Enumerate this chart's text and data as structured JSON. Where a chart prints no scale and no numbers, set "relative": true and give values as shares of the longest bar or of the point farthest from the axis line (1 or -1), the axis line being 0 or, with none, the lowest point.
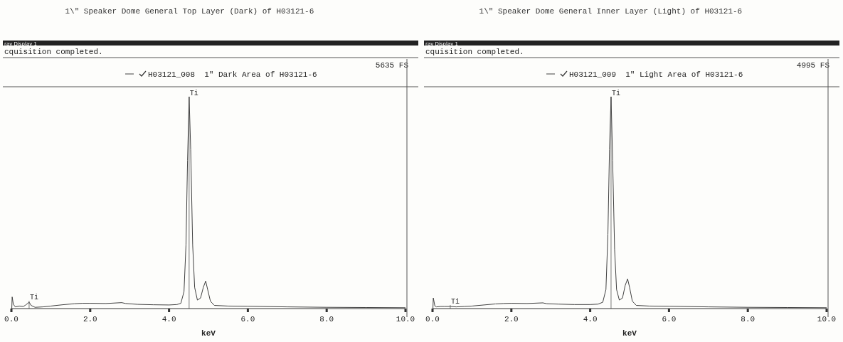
{
  "chart_data": [
    {
      "type": "line",
      "title": "1\\\" Speaker Dome General Top Layer (Dark) of H03121-6",
      "xlabel": "keV",
      "relative": true,
      "legend": "top",
      "grid": false,
      "marker": "none",
      "line_style": "solid",
      "xlim": [
        0,
        10
      ],
      "xticks": [
        {
          "value": 0,
          "label": "0.0"
        },
        {
          "value": 2,
          "label": "2.0"
        },
        {
          "value": 4,
          "label": "4.0"
        },
        {
          "value": 6,
          "label": "6.0"
        },
        {
          "value": 8,
          "label": "8.0"
        },
        {
          "value": 10,
          "label": "10.0"
        }
      ],
      "annotations": [
        "ray Display 1",
        "cquisition completed.",
        "5635 FS",
        {
          "text": "Ti",
          "x": 0.45,
          "y": 0.03
        }
      ],
      "ref_lines": [
        {
          "axis": "x",
          "value": 4.51,
          "label": "Ti",
          "color": "#555555"
        }
      ],
      "series": [
        {
          "name": "H03121_008  1\" Dark Area of H03121-6",
          "color": "#404040",
          "x": [
            0.01,
            0.02,
            0.05,
            0.1,
            0.2,
            0.3,
            0.35,
            0.45,
            0.5,
            0.6,
            0.8,
            1.0,
            1.3,
            1.6,
            1.8,
            2.0,
            2.4,
            2.8,
            2.9,
            3.2,
            3.6,
            4.0,
            4.2,
            4.3,
            4.38,
            4.43,
            4.47,
            4.51,
            4.55,
            4.6,
            4.65,
            4.72,
            4.8,
            4.87,
            4.93,
            4.98,
            5.05,
            5.15,
            5.5,
            6.0,
            7.0,
            8.0,
            9.0,
            10.0
          ],
          "values": [
            0.0,
            0.055,
            0.02,
            0.008,
            0.012,
            0.01,
            0.015,
            0.03,
            0.015,
            0.006,
            0.008,
            0.012,
            0.018,
            0.023,
            0.025,
            0.025,
            0.024,
            0.028,
            0.024,
            0.02,
            0.018,
            0.017,
            0.019,
            0.025,
            0.08,
            0.3,
            0.7,
            1,
            0.75,
            0.3,
            0.1,
            0.04,
            0.05,
            0.1,
            0.13,
            0.09,
            0.035,
            0.015,
            0.012,
            0.011,
            0.008,
            0.006,
            0.005,
            0.004
          ]
        }
      ]
    },
    {
      "type": "line",
      "title": "1\\\" Speaker Dome General Inner Layer (Light) of H03121-6",
      "xlabel": "keV",
      "relative": true,
      "legend": "top",
      "grid": false,
      "marker": "none",
      "line_style": "solid",
      "xlim": [
        0,
        10
      ],
      "xticks": [
        {
          "value": 0,
          "label": "0.0"
        },
        {
          "value": 2,
          "label": "2.0"
        },
        {
          "value": 4,
          "label": "4.0"
        },
        {
          "value": 6,
          "label": "6.0"
        },
        {
          "value": 8,
          "label": "8.0"
        },
        {
          "value": 10,
          "label": "10.0"
        }
      ],
      "annotations": [
        "ray Display 1",
        "cquisition completed.",
        "4995 FS",
        {
          "text": "Ti",
          "x": 0.45,
          "y": 0.01
        }
      ],
      "ref_lines": [
        {
          "axis": "x",
          "value": 4.53,
          "label": "Ti",
          "color": "#555555"
        }
      ],
      "series": [
        {
          "name": "H03121_009  1\" Light Area of H03121-6",
          "color": "#404040",
          "x": [
            0.01,
            0.02,
            0.06,
            0.1,
            0.2,
            0.3,
            0.45,
            0.6,
            0.8,
            1.0,
            1.3,
            1.6,
            1.8,
            2.0,
            2.4,
            2.8,
            2.9,
            3.2,
            3.6,
            4.0,
            4.2,
            4.32,
            4.4,
            4.45,
            4.49,
            4.53,
            4.57,
            4.62,
            4.67,
            4.74,
            4.82,
            4.89,
            4.95,
            5.0,
            5.07,
            5.17,
            5.5,
            6.0,
            7.0,
            8.0,
            9.0,
            10.0
          ],
          "values": [
            0.0,
            0.05,
            0.012,
            0.008,
            0.01,
            0.01,
            0.01,
            0.008,
            0.01,
            0.012,
            0.017,
            0.022,
            0.024,
            0.025,
            0.024,
            0.027,
            0.023,
            0.021,
            0.019,
            0.019,
            0.021,
            0.03,
            0.09,
            0.35,
            0.75,
            1,
            0.7,
            0.28,
            0.09,
            0.04,
            0.05,
            0.11,
            0.14,
            0.1,
            0.035,
            0.015,
            0.012,
            0.011,
            0.008,
            0.006,
            0.005,
            0.004
          ]
        }
      ]
    }
  ]
}
